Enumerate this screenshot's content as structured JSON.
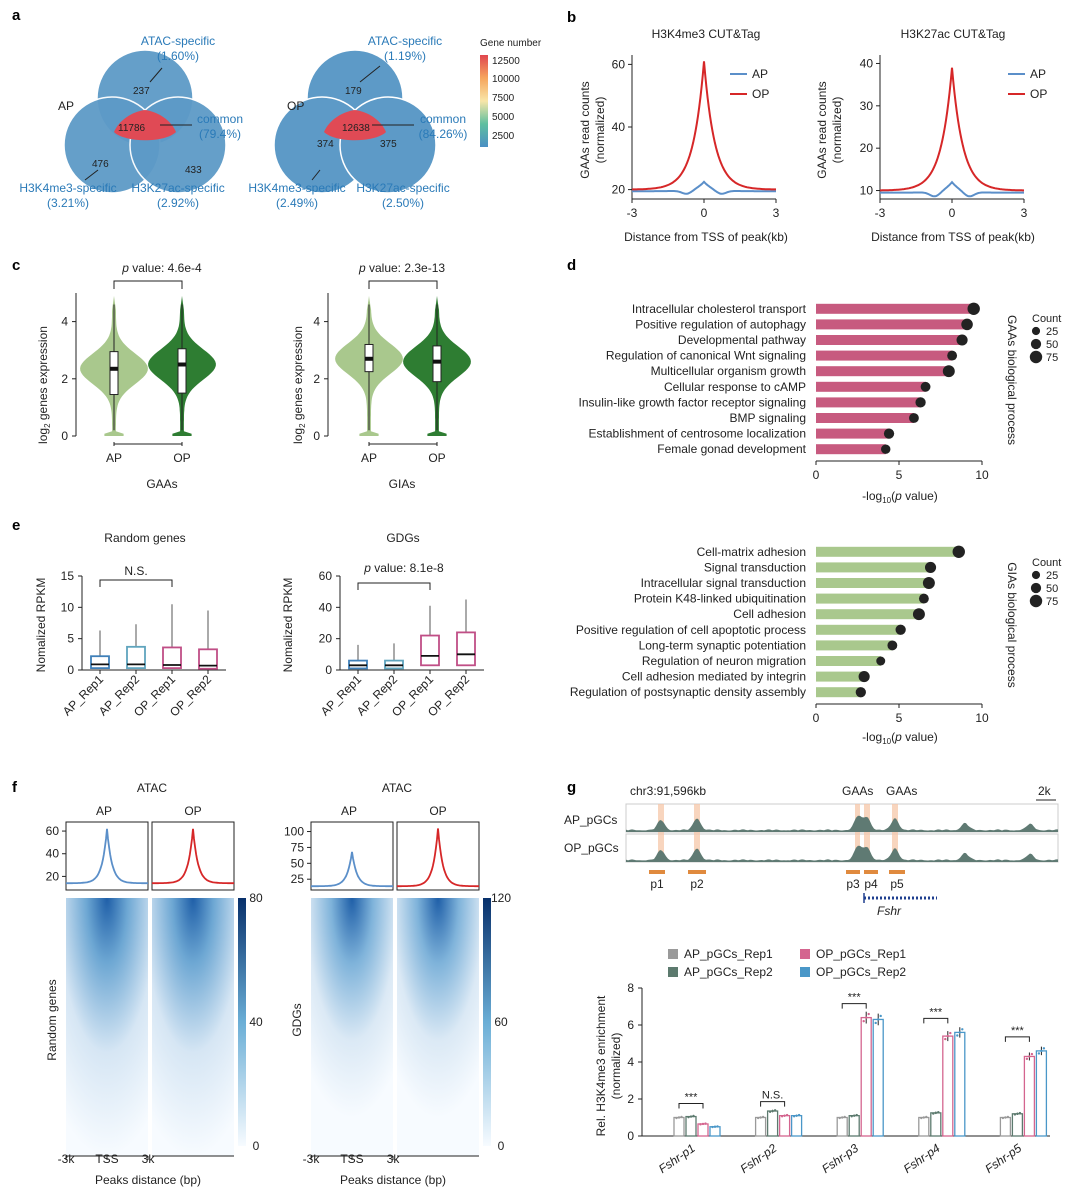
{
  "panel_letters": [
    "a",
    "b",
    "c",
    "d",
    "e",
    "f",
    "g"
  ],
  "chart_data": [
    {
      "panel": "a",
      "type": "venn",
      "group": "AP",
      "counts": {
        "atac": 237,
        "h3k4me3": 476,
        "h3k27ac": 433,
        "common": 11786
      },
      "labels": [
        {
          "name": "ATAC-specific",
          "pct": "(1.60%)"
        },
        {
          "name": "common",
          "pct": "(79.4%)"
        },
        {
          "name": "H3K4me3-specific",
          "pct": "(3.21%)"
        },
        {
          "name": "H3K27ac-specific",
          "pct": "(2.92%)"
        }
      ]
    },
    {
      "panel": "a",
      "type": "venn",
      "group": "OP",
      "counts": {
        "atac": 179,
        "h3k4me3": 374,
        "h3k27ac": 375,
        "common": 12638
      },
      "labels": [
        {
          "name": "ATAC-specific",
          "pct": "(1.19%)"
        },
        {
          "name": "common",
          "pct": "(84.26%)"
        },
        {
          "name": "H3K4me3-specific",
          "pct": "(2.49%)"
        },
        {
          "name": "H3K27ac-specific",
          "pct": "(2.50%)"
        }
      ],
      "colorbar": {
        "title": "Gene number",
        "ticks": [
          12500,
          10000,
          7500,
          5000,
          2500
        ],
        "colors": [
          "#e0464e",
          "#f6a55c",
          "#f8e6a8",
          "#5fbfa0",
          "#4a8fc4"
        ]
      }
    },
    {
      "panel": "b",
      "type": "line",
      "title": "H3K4me3 CUT&Tag",
      "xlabel": "Distance from TSS of peak(kb)",
      "ylabel": [
        "GAAs read counts",
        "(normalized)"
      ],
      "x_ticks": [
        "-3",
        "0",
        "3"
      ],
      "xlim": [
        -3,
        3
      ],
      "ylim": [
        17,
        63
      ],
      "y_ticks": [
        20,
        40,
        60
      ],
      "series": [
        {
          "name": "AP",
          "color": "#5b8fc9",
          "peak": 22.5,
          "base": 19.5
        },
        {
          "name": "OP",
          "color": "#d62728",
          "peak": 61,
          "base": 20
        }
      ]
    },
    {
      "panel": "b",
      "type": "line",
      "title": "H3K27ac CUT&Tag",
      "xlabel": "Distance from TSS of peak(kb)",
      "ylabel": [
        "GAAs read counts",
        "(normalized)"
      ],
      "x_ticks": [
        "-3",
        "0",
        "3"
      ],
      "xlim": [
        -3,
        3
      ],
      "ylim": [
        8,
        42
      ],
      "y_ticks": [
        10,
        20,
        30,
        40
      ],
      "series": [
        {
          "name": "AP",
          "color": "#5b8fc9",
          "peak": 12,
          "base": 9.5
        },
        {
          "name": "OP",
          "color": "#d62728",
          "peak": 39,
          "base": 10
        }
      ]
    },
    {
      "panel": "c",
      "type": "violin",
      "xlabel": "GAAs",
      "ylabel": "log2 genes expression",
      "p_value": "4.6e-4",
      "categories": [
        "AP",
        "OP"
      ],
      "medians": [
        2.35,
        2.5
      ],
      "q1": [
        1.45,
        1.5
      ],
      "q3": [
        2.95,
        3.05
      ],
      "ylim": [
        0,
        5
      ],
      "y_ticks": [
        0,
        2,
        4
      ]
    },
    {
      "panel": "c",
      "type": "violin",
      "xlabel": "GIAs",
      "ylabel": "log2 genes expression",
      "p_value": "2.3e-13",
      "categories": [
        "AP",
        "OP"
      ],
      "medians": [
        2.7,
        2.6
      ],
      "q1": [
        2.25,
        1.9
      ],
      "q3": [
        3.2,
        3.15
      ],
      "ylim": [
        0,
        5
      ],
      "y_ticks": [
        0,
        2,
        4
      ]
    },
    {
      "panel": "d",
      "type": "bar",
      "side_label": "GAAs biological process",
      "xlabel": "-log10(p value)",
      "xlim": [
        0,
        10
      ],
      "x_ticks": [
        0,
        5,
        10
      ],
      "legend_title": "Count",
      "legend_sizes": [
        25,
        50,
        75
      ],
      "categories": [
        "Intracellular cholesterol transport",
        "Positive regulation of autophagy",
        "Developmental pathway",
        "Regulation of canonical Wnt signaling",
        "Multicellular organism growth",
        "Cellular response to cAMP",
        "Insulin-like growth factor receptor signaling",
        "BMP signaling",
        "Establishment of centrosome localization",
        "Female gonad development"
      ],
      "values": [
        9.5,
        9.1,
        8.8,
        8.2,
        8.0,
        6.6,
        6.3,
        5.9,
        4.4,
        4.2
      ],
      "counts": [
        75,
        65,
        60,
        45,
        70,
        45,
        50,
        45,
        50,
        40
      ]
    },
    {
      "panel": "d",
      "type": "bar",
      "side_label": "GIAs biological process",
      "xlabel": "-log10(p value)",
      "xlim": [
        0,
        10
      ],
      "x_ticks": [
        0,
        5,
        10
      ],
      "legend_title": "Count",
      "legend_sizes": [
        25,
        50,
        75
      ],
      "categories": [
        "Cell-matrix adhesion",
        "Signal transduction",
        "Intracellular signal transduction",
        "Protein K48-linked ubiquitination",
        "Cell adhesion",
        "Positive regulation of cell apoptotic process",
        "Long-term synaptic potentiation",
        "Regulation of neuron migration",
        "Cell adhesion mediated by integrin",
        "Regulation of postsynaptic density assembly"
      ],
      "values": [
        8.6,
        6.9,
        6.8,
        6.5,
        6.2,
        5.1,
        4.6,
        3.9,
        2.9,
        2.7
      ],
      "counts": [
        75,
        60,
        70,
        45,
        70,
        50,
        45,
        35,
        60,
        50
      ]
    },
    {
      "panel": "e",
      "type": "box",
      "title": "Random genes",
      "ylabel": "Nomalized RPKM",
      "annotation": "N.S.",
      "categories": [
        "AP_Rep1",
        "AP_Rep2",
        "OP_Rep1",
        "OP_Rep2"
      ],
      "colors": [
        "#3f7fb8",
        "#5fa4bd",
        "#c04e86",
        "#c04e86"
      ],
      "box": [
        {
          "min": 0,
          "q1": 0.3,
          "median": 0.9,
          "q3": 2.2,
          "max": 6.3
        },
        {
          "min": 0,
          "q1": 0.3,
          "median": 0.9,
          "q3": 3.7,
          "max": 7.3
        },
        {
          "min": 0,
          "q1": 0.3,
          "median": 0.8,
          "q3": 3.6,
          "max": 10.5
        },
        {
          "min": 0,
          "q1": 0.2,
          "median": 0.7,
          "q3": 3.3,
          "max": 9.5
        }
      ],
      "ylim": [
        0,
        15
      ],
      "y_ticks": [
        0,
        5,
        10,
        15
      ]
    },
    {
      "panel": "e",
      "type": "box",
      "title": "GDGs",
      "ylabel": "Nomalized RPKM",
      "p_value": "8.1e-8",
      "categories": [
        "AP_Rep1",
        "AP_Rep2",
        "OP_Rep1",
        "OP_Rep2"
      ],
      "colors": [
        "#3f7fb8",
        "#5fa4bd",
        "#c04e86",
        "#c04e86"
      ],
      "box": [
        {
          "min": 0,
          "q1": 1,
          "median": 3,
          "q3": 6,
          "max": 16
        },
        {
          "min": 0,
          "q1": 1,
          "median": 3,
          "q3": 6,
          "max": 17
        },
        {
          "min": 0,
          "q1": 3,
          "median": 9,
          "q3": 22,
          "max": 41
        },
        {
          "min": 0,
          "q1": 3,
          "median": 10,
          "q3": 24,
          "max": 45
        }
      ],
      "ylim": [
        0,
        60
      ],
      "y_ticks": [
        0,
        20,
        40,
        60
      ]
    },
    {
      "panel": "f",
      "type": "heatmap",
      "title": "ATAC",
      "ylabel": "Random genes",
      "xlabel": "Peaks distance (bp)",
      "x_ticks": [
        "-3k",
        "TSS",
        "3k"
      ],
      "columns": [
        "AP",
        "OP"
      ],
      "profile_ticks": [
        20,
        40,
        60
      ],
      "profile_ylim": [
        8,
        68
      ],
      "profile_peaks": [
        62,
        62
      ],
      "colorbar_ticks": [
        80,
        40,
        0
      ]
    },
    {
      "panel": "f",
      "type": "heatmap",
      "title": "ATAC",
      "ylabel": "GDGs",
      "xlabel": "Peaks distance (bp)",
      "x_ticks": [
        "-3k",
        "TSS",
        "3k"
      ],
      "columns": [
        "AP",
        "OP"
      ],
      "profile_ticks": [
        25,
        50,
        75,
        100
      ],
      "profile_ylim": [
        8,
        115
      ],
      "profile_peaks": [
        68,
        105
      ],
      "colorbar_ticks": [
        120,
        60,
        0
      ]
    },
    {
      "panel": "g",
      "type": "bar",
      "xlabel": "",
      "ylabel": [
        "Rel. H3K4me3 enrichment",
        "(normalized)"
      ],
      "ylim": [
        0,
        8
      ],
      "y_ticks": [
        0,
        2,
        4,
        6,
        8
      ],
      "categories": [
        "Fshr-p1",
        "Fshr-p2",
        "Fshr-p3",
        "Fshr-p4",
        "Fshr-p5"
      ],
      "series": [
        {
          "name": "AP_pGCs_Rep1",
          "color": "#9a9a9a",
          "values": [
            1.0,
            1.0,
            1.0,
            1.0,
            1.0
          ]
        },
        {
          "name": "AP_pGCs_Rep2",
          "color": "#5c7a6e",
          "values": [
            1.05,
            1.35,
            1.1,
            1.25,
            1.2
          ]
        },
        {
          "name": "OP_pGCs_Rep1",
          "color": "#d4658f",
          "values": [
            0.65,
            1.1,
            6.4,
            5.4,
            4.3
          ]
        },
        {
          "name": "OP_pGCs_Rep2",
          "color": "#4a97c8",
          "values": [
            0.5,
            1.1,
            6.3,
            5.6,
            4.6
          ]
        }
      ],
      "significance": [
        "***",
        "N.S.",
        "***",
        "***",
        "***"
      ]
    }
  ],
  "panel_g_track": {
    "locus": "chr3:91,596kb",
    "scale": "2k",
    "gaas_labels": [
      "GAAs",
      "GAAs"
    ],
    "tracks": [
      "AP_pGCs",
      "OP_pGCs"
    ],
    "peaks": [
      "p1",
      "p2",
      "p3",
      "p4",
      "p5"
    ],
    "gene": "Fshr"
  }
}
